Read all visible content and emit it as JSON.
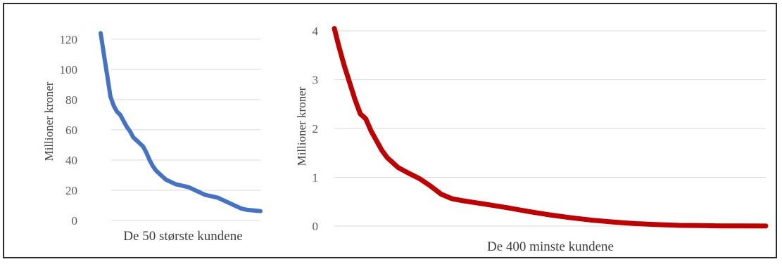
{
  "chart_data": [
    {
      "type": "line",
      "xlabel": "De 50 største kundene",
      "ylabel": "Millioner  kroner",
      "ylim": [
        0,
        125
      ],
      "yticks": [
        "0",
        "20",
        "40",
        "60",
        "80",
        "100",
        "120"
      ],
      "grid": true,
      "color": "#4472C4",
      "series": [
        {
          "values": [
            124,
            110,
            96,
            82,
            76,
            72,
            70,
            66,
            62,
            59,
            55,
            53,
            51,
            49,
            45,
            40,
            36,
            33,
            31,
            29,
            27,
            26,
            25,
            24,
            23.5,
            23,
            22.5,
            22,
            21,
            20,
            19,
            18,
            17,
            16.5,
            16,
            15.5,
            15,
            14,
            13,
            12,
            11,
            10,
            9,
            8,
            7.5,
            7,
            6.8,
            6.6,
            6.4,
            6.2
          ]
        }
      ]
    },
    {
      "type": "line",
      "xlabel": "De 400 minste kundene",
      "ylabel": "Millioner  kroner",
      "ylim": [
        0,
        4.1
      ],
      "yticks": [
        "0",
        "1",
        "2",
        "3",
        "4"
      ],
      "grid": true,
      "color": "#C00000",
      "series": [
        {
          "points": [
            [
              1,
              4.05
            ],
            [
              5,
              3.7
            ],
            [
              10,
              3.3
            ],
            [
              15,
              2.95
            ],
            [
              20,
              2.6
            ],
            [
              25,
              2.3
            ],
            [
              30,
              2.2
            ],
            [
              35,
              1.95
            ],
            [
              40,
              1.75
            ],
            [
              45,
              1.55
            ],
            [
              50,
              1.4
            ],
            [
              55,
              1.3
            ],
            [
              60,
              1.2
            ],
            [
              70,
              1.08
            ],
            [
              80,
              0.97
            ],
            [
              90,
              0.82
            ],
            [
              100,
              0.65
            ],
            [
              110,
              0.56
            ],
            [
              120,
              0.52
            ],
            [
              140,
              0.45
            ],
            [
              160,
              0.38
            ],
            [
              180,
              0.3
            ],
            [
              200,
              0.23
            ],
            [
              220,
              0.17
            ],
            [
              240,
              0.12
            ],
            [
              260,
              0.08
            ],
            [
              280,
              0.05
            ],
            [
              300,
              0.03
            ],
            [
              320,
              0.015
            ],
            [
              340,
              0.01
            ],
            [
              360,
              0.005
            ],
            [
              380,
              0.003
            ],
            [
              400,
              0.002
            ]
          ]
        }
      ]
    }
  ]
}
